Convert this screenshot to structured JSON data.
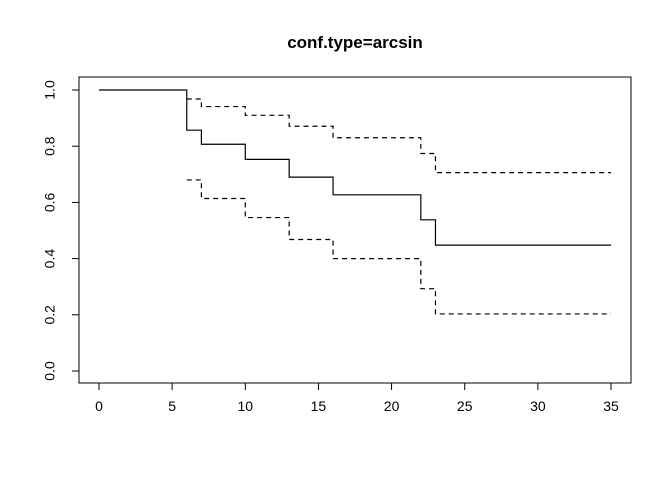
{
  "chart_data": {
    "type": "line",
    "title": "conf.type=arcsin",
    "xlabel": "",
    "ylabel": "",
    "xlim": [
      0,
      35
    ],
    "ylim": [
      0,
      1
    ],
    "x_ticks": [
      0,
      5,
      10,
      15,
      20,
      25,
      30,
      35
    ],
    "y_ticks": [
      0.0,
      0.2,
      0.4,
      0.6,
      0.8,
      1.0
    ],
    "y_tick_labels": [
      "0.0",
      "0.2",
      "0.4",
      "0.6",
      "0.8",
      "1.0"
    ],
    "grid": false,
    "step": true,
    "series": [
      {
        "style": "solid",
        "x": [
          0,
          6,
          7,
          10,
          13,
          16,
          22,
          23,
          35
        ],
        "y": [
          1.0,
          0.857,
          0.807,
          0.753,
          0.69,
          0.627,
          0.538,
          0.448,
          0.448
        ]
      },
      {
        "style": "dashed",
        "x": [
          6,
          7,
          10,
          13,
          16,
          22,
          23,
          35
        ],
        "y": [
          0.968,
          0.941,
          0.91,
          0.871,
          0.83,
          0.774,
          0.706,
          0.706
        ]
      },
      {
        "style": "dashed",
        "x": [
          6,
          7,
          10,
          13,
          16,
          22,
          23,
          35
        ],
        "y": [
          0.68,
          0.614,
          0.546,
          0.468,
          0.4,
          0.293,
          0.203,
          0.203
        ]
      }
    ]
  }
}
